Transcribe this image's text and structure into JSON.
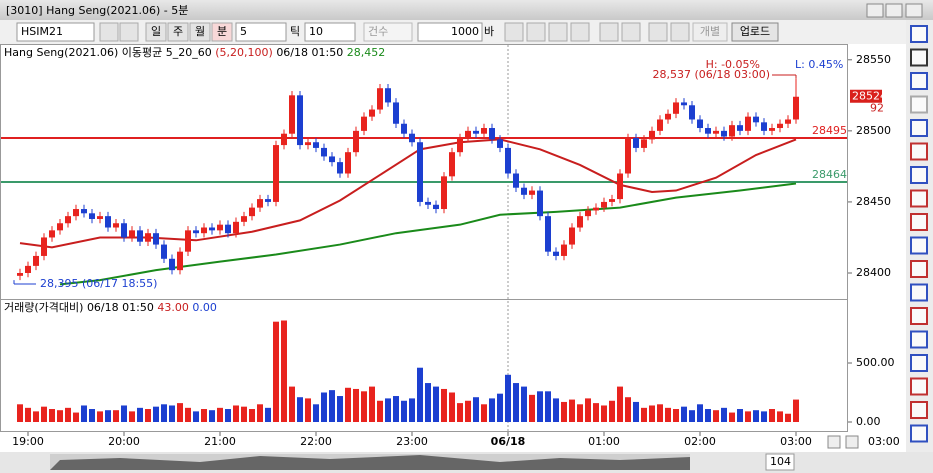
{
  "window": {
    "title": "[3010] Hang Seng(2021.06) - 5분"
  },
  "toolbar": {
    "symbol": "HSIM21",
    "periods": [
      "일",
      "주",
      "월",
      "분"
    ],
    "period_value": "5",
    "tick_label": "틱",
    "tick_value": "10",
    "count_label": "건수",
    "count_value": "1000",
    "unit": "바",
    "individual": "개별",
    "upload": "업로드"
  },
  "chart_data": [
    {
      "type": "candlestick",
      "legend_title": "Hang Seng(2021.06)",
      "indicator": "이동평균 5_20_60",
      "indicator_params": "(5,20,100)",
      "cursor_time": "06/18 01:50",
      "cursor_value": "28,452",
      "high_pct": "H: -0.05%",
      "low_pct": "L: 0.45%",
      "high_label": "28,537 (06/18 03:00)",
      "low_label": "28,395 (06/17 18:55)",
      "last_tag_sub": "92",
      "categories": [
        null,
        "19:00",
        null,
        null,
        null,
        null,
        null,
        null,
        null,
        null,
        null,
        null,
        null,
        "20:00",
        null,
        null,
        null,
        null,
        null,
        null,
        null,
        null,
        null,
        null,
        null,
        "21:00",
        null,
        null,
        null,
        null,
        null,
        null,
        null,
        null,
        null,
        null,
        null,
        "22:00",
        null,
        null,
        null,
        null,
        null,
        null,
        null,
        null,
        null,
        null,
        null,
        "23:00",
        null,
        null,
        null,
        null,
        null,
        null,
        null,
        null,
        null,
        null,
        null,
        "06/18",
        null,
        null,
        null,
        null,
        null,
        null,
        null,
        null,
        null,
        null,
        null,
        "01:00",
        null,
        null,
        null,
        null,
        null,
        null,
        null,
        null,
        null,
        null,
        null,
        "02:00",
        null,
        null,
        null,
        null,
        null,
        null,
        null,
        null,
        null,
        null,
        null,
        "03:00"
      ],
      "open": [
        28398,
        28400,
        28405,
        28412,
        28425,
        28430,
        28435,
        28440,
        28445,
        28442,
        28438,
        28440,
        28432,
        28435,
        28425,
        28430,
        28422,
        28428,
        28420,
        28410,
        28402,
        28415,
        28430,
        28428,
        28432,
        28430,
        28434,
        28428,
        28436,
        28440,
        28446,
        28452,
        28450,
        28490,
        28498,
        28525,
        28490,
        28492,
        28488,
        28482,
        28478,
        28470,
        28485,
        28500,
        28510,
        28515,
        28530,
        28520,
        28505,
        28498,
        28492,
        28450,
        28448,
        28445,
        28468,
        28485,
        28495,
        28500,
        28498,
        28502,
        28494,
        28488,
        28470,
        28460,
        28455,
        28458,
        28440,
        28415,
        28412,
        28420,
        28432,
        28440,
        28444,
        28446,
        28450,
        28452,
        28470,
        28495,
        28488,
        28494,
        28500,
        28508,
        28512,
        28520,
        28518,
        28508,
        28502,
        28498,
        28500,
        28496,
        28504,
        28500,
        28510,
        28506,
        28500,
        28502,
        28505,
        28508
      ],
      "high": [
        28403,
        28408,
        28415,
        28428,
        28433,
        28438,
        28443,
        28448,
        28448,
        28445,
        28443,
        28443,
        28438,
        28438,
        28433,
        28433,
        28431,
        28431,
        28423,
        28413,
        28418,
        28433,
        28433,
        28435,
        28435,
        28437,
        28437,
        28439,
        28443,
        28449,
        28455,
        28455,
        28493,
        28501,
        28528,
        28528,
        28495,
        28495,
        28491,
        28485,
        28481,
        28488,
        28503,
        28513,
        28518,
        28533,
        28533,
        28523,
        28508,
        28501,
        28495,
        28453,
        28451,
        28471,
        28488,
        28498,
        28503,
        28503,
        28505,
        28505,
        28497,
        28491,
        28473,
        28463,
        28461,
        28461,
        28443,
        28418,
        28423,
        28435,
        28443,
        28447,
        28449,
        28453,
        28455,
        28473,
        28498,
        28498,
        28497,
        28503,
        28511,
        28515,
        28523,
        28523,
        28521,
        28511,
        28505,
        28503,
        28503,
        28507,
        28507,
        28513,
        28513,
        28509,
        28505,
        28508,
        28511,
        28537
      ],
      "low": [
        28395,
        28397,
        28402,
        28409,
        28422,
        28427,
        28432,
        28437,
        28439,
        28435,
        28435,
        28429,
        28429,
        28422,
        28422,
        28419,
        28419,
        28417,
        28407,
        28399,
        28399,
        28412,
        28425,
        28425,
        28427,
        28427,
        28425,
        28425,
        28433,
        28437,
        28443,
        28447,
        28447,
        28487,
        28495,
        28487,
        28487,
        28485,
        28479,
        28475,
        28467,
        28467,
        28482,
        28497,
        28507,
        28512,
        28517,
        28502,
        28495,
        28489,
        28447,
        28445,
        28442,
        28442,
        28465,
        28482,
        28492,
        28495,
        28495,
        28491,
        28485,
        28467,
        28457,
        28452,
        28452,
        28437,
        28412,
        28409,
        28409,
        28417,
        28429,
        28437,
        28441,
        28443,
        28447,
        28449,
        28467,
        28485,
        28485,
        28491,
        28497,
        28505,
        28509,
        28515,
        28505,
        28499,
        28495,
        28495,
        28493,
        28493,
        28497,
        28497,
        28503,
        28497,
        28497,
        28499,
        28502,
        28505
      ],
      "close": [
        28400,
        28405,
        28412,
        28425,
        28430,
        28435,
        28440,
        28445,
        28442,
        28438,
        28440,
        28432,
        28435,
        28425,
        28430,
        28422,
        28428,
        28420,
        28410,
        28402,
        28415,
        28430,
        28428,
        28432,
        28430,
        28434,
        28428,
        28436,
        28440,
        28446,
        28452,
        28450,
        28490,
        28498,
        28525,
        28490,
        28492,
        28488,
        28482,
        28478,
        28470,
        28485,
        28500,
        28510,
        28515,
        28530,
        28520,
        28505,
        28498,
        28492,
        28450,
        28448,
        28445,
        28468,
        28485,
        28495,
        28500,
        28498,
        28502,
        28494,
        28488,
        28470,
        28460,
        28455,
        28458,
        28440,
        28415,
        28412,
        28420,
        28432,
        28440,
        28444,
        28446,
        28450,
        28452,
        28470,
        28495,
        28488,
        28494,
        28500,
        28508,
        28512,
        28520,
        28518,
        28508,
        28502,
        28498,
        28500,
        28496,
        28504,
        28500,
        28510,
        28506,
        28500,
        28502,
        28505,
        28508,
        28524
      ],
      "up_color": "#e8231e",
      "down_color": "#1c3fd0",
      "ma": [
        {
          "color": "#c81e1e",
          "x": [
            0,
            4,
            10,
            16,
            22,
            29,
            35,
            40,
            45,
            50,
            55,
            60,
            65,
            70,
            75,
            79,
            82,
            87,
            92,
            97
          ],
          "values": [
            28421,
            28418,
            28425,
            28425,
            28423,
            28429,
            28437,
            28451,
            28469,
            28487,
            28492,
            28494,
            28487,
            28476,
            28462,
            28457,
            28458,
            28467,
            28483,
            28494
          ]
        },
        {
          "color": "#1a8a1a",
          "x": [
            5,
            10,
            17,
            25,
            32,
            40,
            47,
            55,
            60,
            67,
            75,
            82,
            90,
            97
          ],
          "values": [
            28392,
            28395,
            28402,
            28408,
            28413,
            28420,
            28428,
            28434,
            28441,
            28443,
            28446,
            28453,
            28458,
            28463
          ]
        }
      ],
      "hlines": [
        {
          "value": 28495,
          "color": "#e02020"
        },
        {
          "value": 28464,
          "color": "#3a9a6a"
        }
      ],
      "ylim": [
        28381,
        28559
      ],
      "yticks": [
        28400,
        28450,
        28500,
        28550
      ]
    },
    {
      "type": "bar",
      "title": "거래량(가격대비)",
      "cursor_time": "06/18 01:50",
      "cursor_values": [
        "43.00",
        "0.00"
      ],
      "values": [
        150,
        120,
        90,
        130,
        110,
        100,
        120,
        80,
        140,
        110,
        90,
        100,
        100,
        140,
        90,
        120,
        110,
        130,
        150,
        140,
        160,
        120,
        90,
        110,
        100,
        120,
        110,
        140,
        130,
        110,
        150,
        120,
        850,
        860,
        300,
        210,
        200,
        150,
        250,
        270,
        220,
        290,
        280,
        260,
        300,
        180,
        200,
        220,
        180,
        200,
        460,
        330,
        300,
        280,
        250,
        160,
        180,
        210,
        150,
        200,
        240,
        400,
        330,
        300,
        230,
        260,
        260,
        200,
        170,
        190,
        150,
        200,
        160,
        140,
        180,
        300,
        210,
        170,
        120,
        140,
        150,
        120,
        110,
        130,
        100,
        150,
        110,
        100,
        120,
        80,
        110,
        90,
        100,
        90,
        110,
        90,
        70,
        190
      ],
      "ylim": [
        0,
        949
      ],
      "yticks": [
        {
          "value": 0,
          "label": "0.00"
        },
        {
          "value": 500,
          "label": "500.00"
        }
      ]
    }
  ],
  "footer": {
    "time": "03:00",
    "zoom": "104"
  }
}
